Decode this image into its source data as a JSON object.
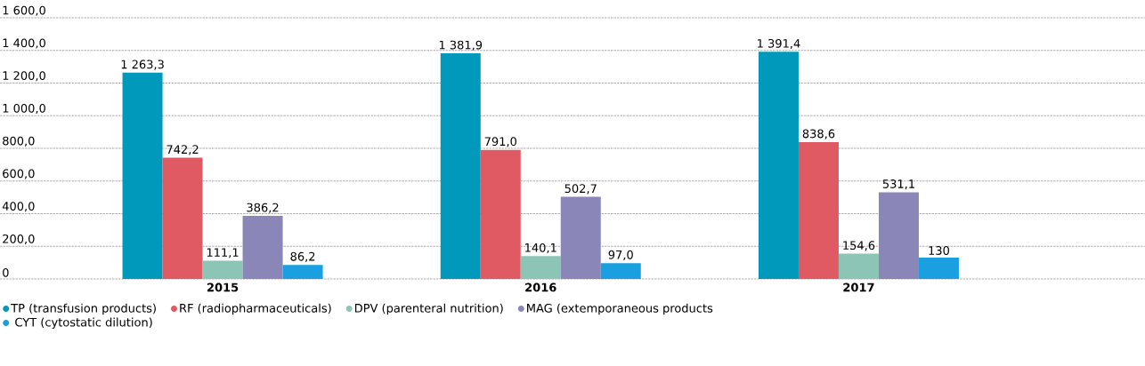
{
  "chart_data": {
    "type": "bar",
    "categories": [
      "2015",
      "2016",
      "2017"
    ],
    "series": [
      {
        "name": "TP (transfusion products)",
        "color": "#0099bb",
        "values": [
          1263.3,
          1381.9,
          1391.4
        ],
        "value_labels": [
          "1 263,3",
          "1 381,9",
          "1 391,4"
        ]
      },
      {
        "name": "RF (radiopharmaceuticals)",
        "color": "#e05a63",
        "values": [
          742.2,
          791.0,
          838.6
        ],
        "value_labels": [
          "742,2",
          "791,0",
          "838,6"
        ]
      },
      {
        "name": "DPV (parenteral nutrition)",
        "color": "#8cc5b5",
        "values": [
          111.1,
          140.1,
          154.6
        ],
        "value_labels": [
          "111,1",
          "140,1",
          "154,6"
        ]
      },
      {
        "name": "MAG (extemporaneous products",
        "color": "#8a86b8",
        "values": [
          386.2,
          502.7,
          531.1
        ],
        "value_labels": [
          "386,2",
          "502,7",
          "531,1"
        ]
      },
      {
        "name": "CYT (cytostatic dilution)",
        "color": "#1aa0e0",
        "values": [
          86.2,
          97.0,
          130
        ],
        "value_labels": [
          "86,2",
          "97,0",
          "130"
        ]
      }
    ],
    "ylim": [
      0,
      1600
    ],
    "yticks": [
      {
        "value": 0,
        "label": "0"
      },
      {
        "value": 200,
        "label": "200,0"
      },
      {
        "value": 400,
        "label": "400,0"
      },
      {
        "value": 600,
        "label": "600,0"
      },
      {
        "value": 800,
        "label": "800,0"
      },
      {
        "value": 1000,
        "label": "1 000,0"
      },
      {
        "value": 1200,
        "label": "1 200,0"
      },
      {
        "value": 1400,
        "label": "1 400,0"
      },
      {
        "value": 1600,
        "label": "1 600,0"
      }
    ],
    "grid": "y",
    "legend": "bottom"
  }
}
